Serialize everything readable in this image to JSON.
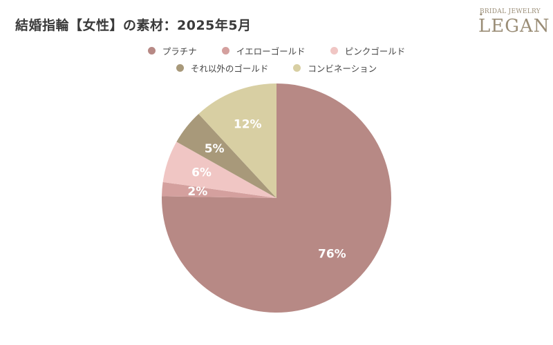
{
  "header": {
    "title": "結婚指輪【女性】の素材：2025年5月"
  },
  "logo": {
    "subtitle": "BRIDAL JEWELRY",
    "name": "LEGAN"
  },
  "chart_data": {
    "type": "pie",
    "title": "結婚指輪【女性】の素材：2025年5月",
    "categories": [
      "プラチナ",
      "イエローゴールド",
      "ピンクゴールド",
      "それ以外のゴールド",
      "コンビネーション"
    ],
    "values": [
      76,
      2,
      6,
      5,
      12
    ],
    "labels": [
      "76%",
      "2%",
      "6%",
      "5%",
      "12%"
    ],
    "colors": [
      "#b78985",
      "#d4a09e",
      "#f0c6c4",
      "#a8997a",
      "#d8cfa3"
    ],
    "legend_position": "top-center",
    "start_angle": "12 o'clock, clockwise"
  }
}
